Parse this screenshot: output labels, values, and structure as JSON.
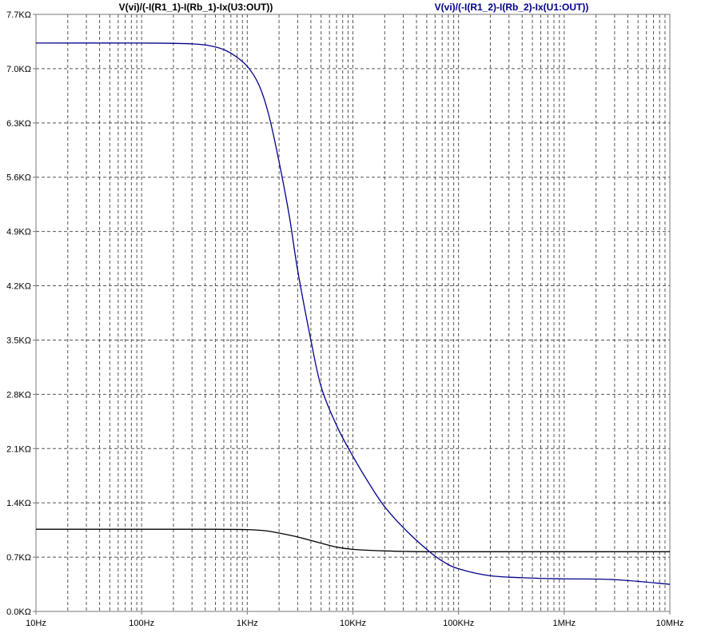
{
  "chart_data": {
    "type": "line",
    "title": "",
    "xlabel": "",
    "ylabel": "",
    "x_scale": "log",
    "xlim": [
      10,
      10000000
    ],
    "ylim": [
      0,
      7700
    ],
    "grid": true,
    "x_tick_labels": [
      "10Hz",
      "100Hz",
      "1KHz",
      "10KHz",
      "100KHz",
      "1MHz",
      "10MHz"
    ],
    "x_tick_values": [
      10,
      100,
      1000,
      10000,
      100000,
      1000000,
      10000000
    ],
    "y_tick_labels": [
      "0.0KΩ",
      "0.7KΩ",
      "1.4KΩ",
      "2.1KΩ",
      "2.8KΩ",
      "3.5KΩ",
      "4.2KΩ",
      "4.9KΩ",
      "5.6KΩ",
      "6.3KΩ",
      "7.0KΩ",
      "7.7KΩ"
    ],
    "y_tick_values": [
      0,
      700,
      1400,
      2100,
      2800,
      3500,
      4200,
      4900,
      5600,
      6300,
      7000,
      7700
    ],
    "series": [
      {
        "name": "V(vi)/(-I(R1_1)-I(Rb_1)-Ix(U3:OUT))",
        "color": "#000000",
        "x": [
          10,
          100,
          500,
          1000,
          1500,
          2000,
          3000,
          5000,
          7000,
          10000,
          20000,
          50000,
          100000,
          1000000,
          10000000
        ],
        "y": [
          1060,
          1060,
          1060,
          1055,
          1040,
          1010,
          960,
          880,
          830,
          800,
          780,
          770,
          770,
          770,
          770
        ]
      },
      {
        "name": "V(vi)/(-I(R1_2)-I(Rb_2)-Ix(U1:OUT))",
        "color": "#00008b",
        "x": [
          10,
          100,
          300,
          500,
          700,
          1000,
          1300,
          1600,
          2000,
          2500,
          3000,
          4000,
          5000,
          7000,
          10000,
          15000,
          20000,
          30000,
          50000,
          70000,
          100000,
          200000,
          500000,
          1000000,
          3000000,
          10000000
        ],
        "y": [
          7330,
          7330,
          7320,
          7280,
          7200,
          7030,
          6780,
          6400,
          5800,
          5100,
          4400,
          3500,
          2900,
          2400,
          2000,
          1600,
          1350,
          1080,
          800,
          650,
          550,
          460,
          430,
          420,
          410,
          350
        ]
      }
    ]
  }
}
